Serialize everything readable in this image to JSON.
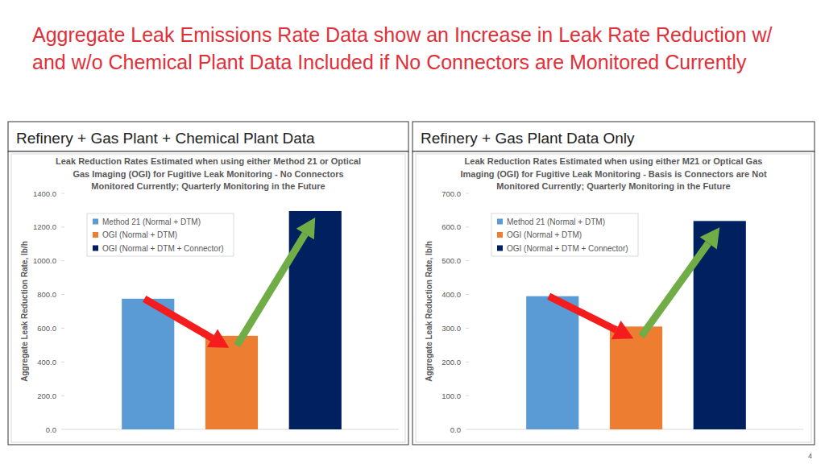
{
  "slide": {
    "title": "Aggregate Leak Emissions Rate Data show an Increase in Leak Rate Reduction w/ and w/o Chemical Plant Data Included if No Connectors are Monitored Currently",
    "panels": [
      "Refinery + Gas Plant + Chemical Plant Data",
      "Refinery + Gas Plant Data Only"
    ],
    "page": 4
  },
  "chart_data": [
    {
      "type": "bar",
      "title": "Leak Reduction Rates Estimated when using either Method 21 or Optical Gas Imaging (OGI) for Fugitive Leak Monitoring - No Connectors Monitored Currently; Quarterly Monitoring in the Future",
      "y_label": "Aggregate Leak Reduction Rate, lb/h",
      "categories": [
        null
      ],
      "series": [
        {
          "name": "Method 21 (Normal + DTM)",
          "color": "#5b9bd5",
          "values": [
            775
          ]
        },
        {
          "name": "OGI (Normal + DTM)",
          "color": "#ed7d31",
          "values": [
            555
          ]
        },
        {
          "name": "OGI (Normal + DTM + Connector)",
          "color": "#002060",
          "values": [
            1295
          ]
        }
      ],
      "ylim": [
        0,
        1400
      ],
      "yticks": [
        {
          "value": 0,
          "label": "0.0"
        },
        {
          "value": 200,
          "label": "200.0"
        },
        {
          "value": 400,
          "label": "400.0"
        },
        {
          "value": 600,
          "label": "600.0"
        },
        {
          "value": 800,
          "label": "800.0"
        },
        {
          "value": 1000,
          "label": "1000.0"
        },
        {
          "value": 1200,
          "label": "1200.0"
        },
        {
          "value": 1400,
          "label": "1400.0"
        }
      ],
      "grid": false,
      "legend": "top-left",
      "tick_labels": "y"
    },
    {
      "type": "bar",
      "title": "Leak Reduction Rates Estimated when using either M21 or Optical Gas Imaging (OGI) for Fugitive Leak Monitoring - Basis is Connectors are Not Monitored Currently; Quarterly Monitoring in the Future",
      "y_label": "Aggregate Leak Reduction Rate, lb/h",
      "categories": [
        null
      ],
      "series": [
        {
          "name": "Method 21 (Normal + DTM)",
          "color": "#5b9bd5",
          "values": [
            395
          ]
        },
        {
          "name": "OGI (Normal + DTM)",
          "color": "#ed7d31",
          "values": [
            305
          ]
        },
        {
          "name": "OGI (Normal + DTM + Connector)",
          "color": "#002060",
          "values": [
            618
          ]
        }
      ],
      "ylim": [
        0,
        700
      ],
      "yticks": [
        {
          "value": 0,
          "label": "0.0"
        },
        {
          "value": 100,
          "label": "100.0"
        },
        {
          "value": 200,
          "label": "200.0"
        },
        {
          "value": 300,
          "label": "300.0"
        },
        {
          "value": 400,
          "label": "400.0"
        },
        {
          "value": 500,
          "label": "500.0"
        },
        {
          "value": 600,
          "label": "600.0"
        },
        {
          "value": 700,
          "label": "700.0"
        }
      ],
      "grid": false,
      "legend": "top-left",
      "tick_labels": "y"
    }
  ]
}
